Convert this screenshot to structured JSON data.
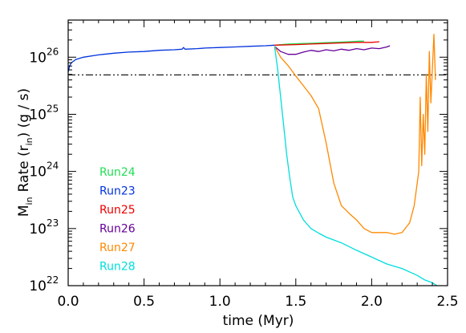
{
  "chart_data": {
    "type": "line",
    "xlabel": "time      (Myr)",
    "ylabel": {
      "main": "M",
      "main_sub": "in",
      "rate": "Rate (r",
      "rate_sub": "in",
      "units": ")    (g / s)"
    },
    "xlim": [
      0.0,
      2.5
    ],
    "ylim_log10": [
      22,
      26.65
    ],
    "y_scale": "log",
    "x_ticks": [
      "0.0",
      "0.5",
      "1.0",
      "1.5",
      "2.0",
      "2.5"
    ],
    "x_tick_values": [
      0.0,
      0.5,
      1.0,
      1.5,
      2.0,
      2.5
    ],
    "y_ticks": [
      {
        "base": "10",
        "exp": "22",
        "value_log10": 22
      },
      {
        "base": "10",
        "exp": "23",
        "value_log10": 23
      },
      {
        "base": "10",
        "exp": "24",
        "value_log10": 24
      },
      {
        "base": "10",
        "exp": "25",
        "value_log10": 25
      },
      {
        "base": "10",
        "exp": "26",
        "value_log10": 26
      }
    ],
    "reference_line": {
      "style": "dash-dot-dot",
      "color": "#000000",
      "value_log10": 25.69
    },
    "legend_placement": "lower-left",
    "series": [
      {
        "name": "Run24",
        "color": "#22dd55",
        "x": [
          1.36,
          1.45,
          1.55,
          1.65,
          1.75,
          1.85,
          1.92,
          1.95
        ],
        "log10_y": [
          26.21,
          26.23,
          26.24,
          26.25,
          26.26,
          26.27,
          26.28,
          26.28
        ]
      },
      {
        "name": "Run23",
        "color": "#0033dd",
        "x": [
          0.0,
          0.01,
          0.02,
          0.05,
          0.1,
          0.2,
          0.3,
          0.4,
          0.5,
          0.6,
          0.7,
          0.75,
          0.76,
          0.77,
          0.85,
          0.9,
          1.0,
          1.1,
          1.2,
          1.3,
          1.36
        ],
        "log10_y": [
          25.74,
          25.85,
          25.9,
          25.96,
          26.0,
          26.04,
          26.07,
          26.09,
          26.1,
          26.12,
          26.13,
          26.14,
          26.17,
          26.14,
          26.15,
          26.16,
          26.17,
          26.18,
          26.19,
          26.2,
          26.21
        ]
      },
      {
        "name": "Run25",
        "color": "#ee0000",
        "x": [
          1.36,
          1.5,
          1.6,
          1.7,
          1.8,
          1.9,
          2.0,
          2.05
        ],
        "log10_y": [
          26.21,
          26.22,
          26.23,
          26.24,
          26.25,
          26.26,
          26.26,
          26.27
        ]
      },
      {
        "name": "Run26",
        "color": "#660099",
        "x": [
          1.36,
          1.4,
          1.45,
          1.5,
          1.55,
          1.6,
          1.65,
          1.7,
          1.75,
          1.8,
          1.85,
          1.9,
          1.95,
          2.0,
          2.05,
          2.1,
          2.12
        ],
        "log10_y": [
          26.19,
          26.1,
          26.05,
          26.05,
          26.09,
          26.12,
          26.1,
          26.13,
          26.11,
          26.14,
          26.12,
          26.15,
          26.13,
          26.16,
          26.15,
          26.18,
          26.2
        ]
      },
      {
        "name": "Run27",
        "color": "#ff8800",
        "x": [
          1.36,
          1.4,
          1.45,
          1.5,
          1.55,
          1.6,
          1.65,
          1.7,
          1.75,
          1.8,
          1.85,
          1.9,
          1.95,
          2.0,
          2.05,
          2.1,
          2.15,
          2.2,
          2.25,
          2.28,
          2.3,
          2.31,
          2.32,
          2.33,
          2.34,
          2.35,
          2.36,
          2.37,
          2.38,
          2.39,
          2.4,
          2.41,
          2.42
        ],
        "log10_y": [
          26.19,
          26.0,
          25.85,
          25.67,
          25.5,
          25.33,
          25.1,
          24.5,
          23.8,
          23.4,
          23.27,
          23.15,
          23.0,
          22.93,
          22.93,
          22.93,
          22.9,
          22.93,
          23.1,
          23.4,
          23.8,
          24.0,
          25.3,
          24.1,
          25.0,
          24.3,
          25.7,
          24.7,
          26.1,
          25.2,
          25.8,
          26.4,
          25.6
        ]
      },
      {
        "name": "Run28",
        "color": "#00dddd",
        "x": [
          1.36,
          1.38,
          1.4,
          1.42,
          1.44,
          1.46,
          1.48,
          1.5,
          1.52,
          1.55,
          1.6,
          1.65,
          1.7,
          1.8,
          1.9,
          2.0,
          2.1,
          2.2,
          2.3,
          2.35,
          2.4,
          2.43
        ],
        "log10_y": [
          26.19,
          25.8,
          25.3,
          24.8,
          24.3,
          23.9,
          23.55,
          23.4,
          23.3,
          23.15,
          23.0,
          22.92,
          22.85,
          22.75,
          22.62,
          22.5,
          22.38,
          22.3,
          22.18,
          22.1,
          22.05,
          22.0
        ]
      }
    ]
  }
}
